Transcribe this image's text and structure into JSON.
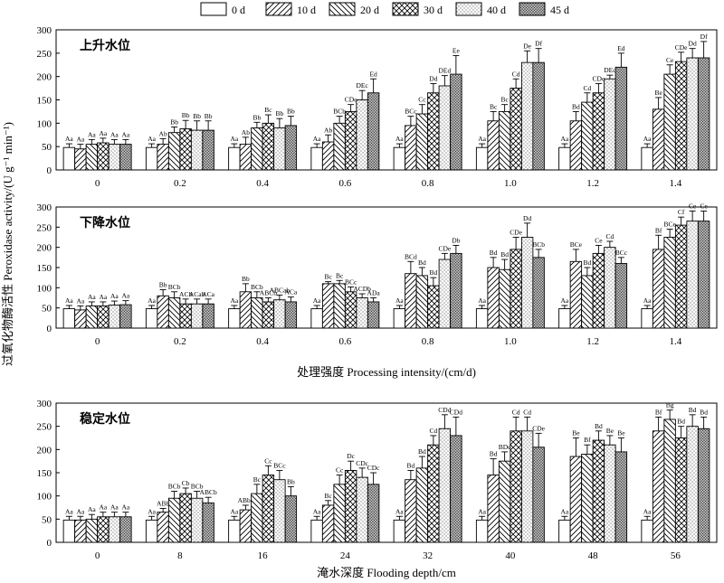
{
  "chart_data": {
    "type": "bar",
    "ylabel": "过氧化物酶活性 Peroxidase activity/(U g⁻¹ min⁻¹)",
    "legend": {
      "placement": "top",
      "entries": [
        {
          "name": "0 d",
          "pattern": "blank"
        },
        {
          "name": "10 d",
          "pattern": "diag-forward"
        },
        {
          "name": "20 d",
          "pattern": "diag-backward"
        },
        {
          "name": "30 d",
          "pattern": "cross"
        },
        {
          "name": "40 d",
          "pattern": "dots"
        },
        {
          "name": "45 d",
          "pattern": "dense-dots"
        }
      ]
    },
    "panels": [
      {
        "title": "上升水位",
        "xlabel": "",
        "categories": [
          "0",
          "0.2",
          "0.4",
          "0.6",
          "0.8",
          "1.0",
          "1.2",
          "1.4"
        ],
        "ylim": [
          0,
          300
        ],
        "yticks": [
          0,
          50,
          100,
          150,
          200,
          250,
          300
        ],
        "series": [
          {
            "name": "0 d",
            "values": [
              48,
              48,
              48,
              48,
              48,
              48,
              48,
              48
            ],
            "errors": [
              8,
              8,
              8,
              8,
              8,
              8,
              8,
              8
            ],
            "labels": [
              "Aa",
              "Aa",
              "Aa",
              "Aa",
              "Aa",
              "Aa",
              "Aa",
              "Aa"
            ]
          },
          {
            "name": "10 d",
            "values": [
              45,
              55,
              55,
              60,
              95,
              105,
              105,
              130
            ],
            "errors": [
              10,
              12,
              15,
              15,
              20,
              20,
              20,
              25
            ],
            "labels": [
              "Aa",
              "Ab",
              "Ab",
              "Ab",
              "BCc",
              "Bc",
              "Bd",
              "Be"
            ]
          },
          {
            "name": "20 d",
            "values": [
              55,
              80,
              90,
              100,
              120,
              125,
              145,
              205
            ],
            "errors": [
              10,
              12,
              12,
              15,
              20,
              15,
              20,
              20
            ],
            "labels": [
              "Aa",
              "Bb",
              "Bb",
              "BCb",
              "Cc",
              "Bc",
              "Cd",
              "Ce"
            ]
          },
          {
            "name": "30 d",
            "values": [
              58,
              88,
              100,
              125,
              165,
              175,
              165,
              232
            ],
            "errors": [
              10,
              18,
              18,
              15,
              20,
              20,
              20,
              20
            ],
            "labels": [
              "Aa",
              "Bb",
              "Bc",
              "CDc",
              "Dd",
              "Cd",
              "CDc",
              "CDe"
            ]
          },
          {
            "name": "40 d",
            "values": [
              55,
              85,
              90,
              150,
              180,
              230,
              195,
              240
            ],
            "errors": [
              10,
              20,
              20,
              20,
              22,
              25,
              8,
              20
            ],
            "labels": [
              "Aa",
              "Bb",
              "Bb",
              "DEc",
              "DEd",
              "De",
              "DEc",
              "Dd"
            ]
          },
          {
            "name": "45 d",
            "values": [
              55,
              85,
              95,
              165,
              205,
              230,
              220,
              240
            ],
            "errors": [
              10,
              20,
              20,
              30,
              40,
              30,
              30,
              35
            ],
            "labels": [
              "Aa",
              "Bb",
              "Bb",
              "Ed",
              "Ee",
              "Df",
              "Ed",
              "Df"
            ]
          }
        ]
      },
      {
        "title": "下降水位",
        "xlabel": "处理强度 Processing intensity/(cm/d)",
        "categories": [
          "0",
          "0.2",
          "0.4",
          "0.6",
          "0.8",
          "1.0",
          "1.2",
          "1.4"
        ],
        "ylim": [
          0,
          300
        ],
        "yticks": [
          0,
          50,
          100,
          150,
          200,
          250,
          300
        ],
        "series": [
          {
            "name": "0 d",
            "values": [
              48,
              48,
              48,
              48,
              48,
              48,
              48,
              48
            ],
            "errors": [
              8,
              8,
              8,
              8,
              8,
              8,
              8,
              8
            ],
            "labels": [
              "Aa",
              "Aa",
              "Aa",
              "Aa",
              "Aa",
              "Aa",
              "Aa",
              "Aa"
            ]
          },
          {
            "name": "10 d",
            "values": [
              45,
              80,
              90,
              110,
              135,
              150,
              165,
              195
            ],
            "errors": [
              10,
              15,
              20,
              5,
              30,
              25,
              30,
              35
            ],
            "labels": [
              "Aa",
              "Bb",
              "Bb",
              "Bc",
              "BCd",
              "Bd",
              "BCe",
              "Bf"
            ]
          },
          {
            "name": "20 d",
            "values": [
              55,
              75,
              75,
              110,
              130,
              145,
              130,
              225
            ],
            "errors": [
              10,
              15,
              15,
              8,
              20,
              25,
              20,
              20
            ],
            "labels": [
              "Aa",
              "BCb",
              "BCb",
              "Bc",
              "Bd",
              "Bd",
              "Bd",
              "BCe"
            ]
          },
          {
            "name": "30 d",
            "values": [
              55,
              60,
              65,
              90,
              105,
              195,
              185,
              255
            ],
            "errors": [
              10,
              12,
              10,
              12,
              20,
              30,
              20,
              20
            ],
            "labels": [
              "Aa",
              "ACb",
              "ABCb",
              "BCc",
              "Bd",
              "CDe",
              "Ce",
              "Cf"
            ]
          },
          {
            "name": "40 d",
            "values": [
              57,
              60,
              70,
              75,
              170,
              225,
              200,
              265
            ],
            "errors": [
              10,
              12,
              12,
              10,
              15,
              35,
              15,
              25
            ],
            "labels": [
              "Aa",
              "ACab",
              "ABCab",
              "ACDb",
              "CDe",
              "Dd",
              "Cd",
              "Ce"
            ]
          },
          {
            "name": "45 d",
            "values": [
              58,
              60,
              65,
              65,
              185,
              175,
              160,
              265
            ],
            "errors": [
              10,
              12,
              12,
              10,
              20,
              20,
              15,
              25
            ],
            "labels": [
              "Aa",
              "ACa",
              "ACa",
              "ADa",
              "Db",
              "BCb",
              "BCc",
              "Ce"
            ]
          }
        ]
      },
      {
        "title": "稳定水位",
        "xlabel": "淹水深度 Flooding depth/cm",
        "categories": [
          "0",
          "8",
          "16",
          "24",
          "32",
          "40",
          "48",
          "56"
        ],
        "ylim": [
          0,
          300
        ],
        "yticks": [
          0,
          50,
          100,
          150,
          200,
          250,
          300
        ],
        "series": [
          {
            "name": "0 d",
            "values": [
              48,
              48,
              48,
              48,
              48,
              48,
              48,
              48
            ],
            "errors": [
              8,
              8,
              8,
              8,
              8,
              8,
              8,
              8
            ],
            "labels": [
              "Aa",
              "Aa",
              "Aa",
              "Aa",
              "Aa",
              "Aa",
              "Aa",
              "Aa"
            ]
          },
          {
            "name": "10 d",
            "values": [
              48,
              65,
              70,
              80,
              135,
              145,
              185,
              240
            ],
            "errors": [
              8,
              8,
              10,
              10,
              20,
              35,
              40,
              30
            ],
            "labels": [
              "Aa",
              "ABb",
              "ABbc",
              "Bc",
              "Bd",
              "Bd",
              "Be",
              "Bf"
            ]
          },
          {
            "name": "20 d",
            "values": [
              50,
              95,
              105,
              125,
              160,
              175,
              190,
              265
            ],
            "errors": [
              10,
              15,
              20,
              20,
              25,
              20,
              20,
              20
            ],
            "labels": [
              "Aa",
              "BCb",
              "Bc",
              "Cc",
              "Bd",
              "BDe",
              "Bf",
              "Bg"
            ]
          },
          {
            "name": "30 d",
            "values": [
              55,
              105,
              145,
              155,
              210,
              240,
              220,
              225
            ],
            "errors": [
              10,
              12,
              20,
              20,
              20,
              30,
              20,
              25
            ],
            "labels": [
              "Aa",
              "Cb",
              "Cc",
              "Dc",
              "Cd",
              "Cd",
              "Bd",
              "Bd"
            ]
          },
          {
            "name": "40 d",
            "values": [
              55,
              95,
              135,
              140,
              245,
              240,
              210,
              250
            ],
            "errors": [
              10,
              15,
              20,
              20,
              30,
              30,
              20,
              25
            ],
            "labels": [
              "Aa",
              "BCb",
              "BCc",
              "CDc",
              "CDd",
              "Cd",
              "Be",
              "Bd"
            ]
          },
          {
            "name": "45 d",
            "values": [
              55,
              85,
              100,
              125,
              230,
              205,
              195,
              245
            ],
            "errors": [
              10,
              12,
              20,
              25,
              40,
              30,
              30,
              25
            ],
            "labels": [
              "Aa",
              "ABCb",
              "Bb",
              "CDc",
              "CDd",
              "CDe",
              "Be",
              "Bd"
            ]
          }
        ]
      }
    ]
  }
}
